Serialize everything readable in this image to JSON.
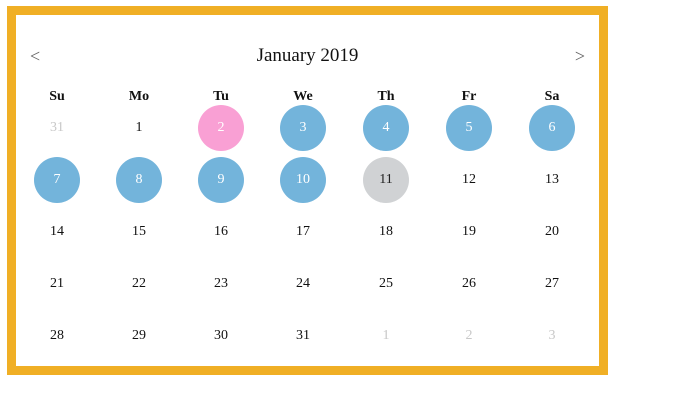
{
  "calendar": {
    "month_title": "January 2019",
    "prev_label": "<",
    "next_label": ">",
    "weekdays": [
      "Su",
      "Mo",
      "Tu",
      "We",
      "Th",
      "Fr",
      "Sa"
    ],
    "weeks": [
      [
        {
          "day": "31",
          "state": "muted"
        },
        {
          "day": "1",
          "state": "normal"
        },
        {
          "day": "2",
          "state": "start"
        },
        {
          "day": "3",
          "state": "selected"
        },
        {
          "day": "4",
          "state": "selected"
        },
        {
          "day": "5",
          "state": "selected"
        },
        {
          "day": "6",
          "state": "selected"
        }
      ],
      [
        {
          "day": "7",
          "state": "selected"
        },
        {
          "day": "8",
          "state": "selected"
        },
        {
          "day": "9",
          "state": "selected"
        },
        {
          "day": "10",
          "state": "selected"
        },
        {
          "day": "11",
          "state": "today"
        },
        {
          "day": "12",
          "state": "normal"
        },
        {
          "day": "13",
          "state": "normal"
        }
      ],
      [
        {
          "day": "14",
          "state": "normal"
        },
        {
          "day": "15",
          "state": "normal"
        },
        {
          "day": "16",
          "state": "normal"
        },
        {
          "day": "17",
          "state": "normal"
        },
        {
          "day": "18",
          "state": "normal"
        },
        {
          "day": "19",
          "state": "normal"
        },
        {
          "day": "20",
          "state": "normal"
        }
      ],
      [
        {
          "day": "21",
          "state": "normal"
        },
        {
          "day": "22",
          "state": "normal"
        },
        {
          "day": "23",
          "state": "normal"
        },
        {
          "day": "24",
          "state": "normal"
        },
        {
          "day": "25",
          "state": "normal"
        },
        {
          "day": "26",
          "state": "normal"
        },
        {
          "day": "27",
          "state": "normal"
        }
      ],
      [
        {
          "day": "28",
          "state": "normal"
        },
        {
          "day": "29",
          "state": "normal"
        },
        {
          "day": "30",
          "state": "normal"
        },
        {
          "day": "31",
          "state": "normal"
        },
        {
          "day": "1",
          "state": "muted"
        },
        {
          "day": "2",
          "state": "muted"
        },
        {
          "day": "3",
          "state": "muted"
        }
      ]
    ]
  },
  "colors": {
    "frame": "#F0AF25",
    "selected": "#73B4DB",
    "range_start": "#F9A0D4",
    "today": "#D0D2D4",
    "muted_text": "#C8C8C8"
  }
}
